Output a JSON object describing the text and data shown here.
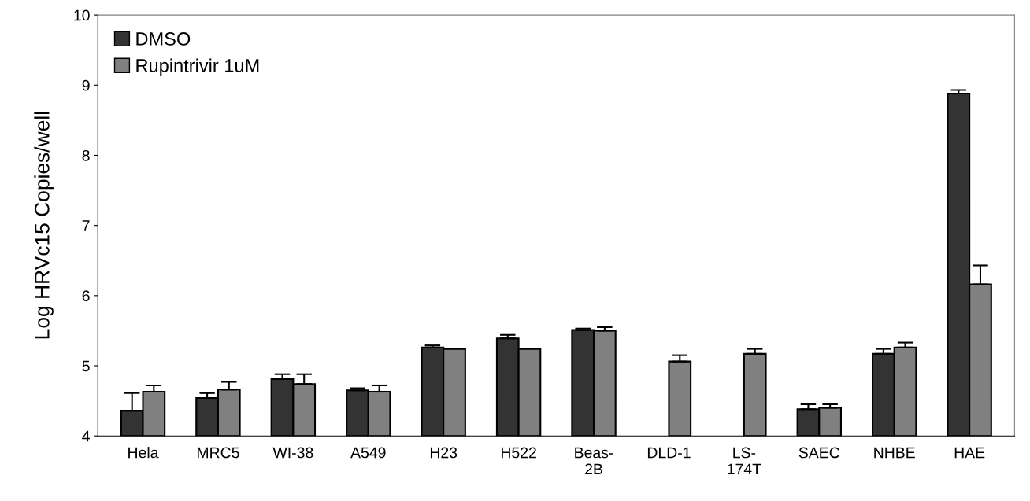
{
  "chart_data": {
    "type": "bar",
    "ylabel": "Log HRVc15 Copies/well",
    "categories": [
      "Hela",
      "MRC5",
      "WI-38",
      "A549",
      "H23",
      "H522",
      "Beas-\n2B",
      "DLD-1",
      "LS-\n174T",
      "SAEC",
      "NHBE",
      "HAE"
    ],
    "series": [
      {
        "name": "DMSO",
        "color": "#333333",
        "values": [
          4.36,
          4.54,
          4.81,
          4.65,
          5.26,
          5.39,
          5.51,
          null,
          null,
          4.38,
          5.17,
          8.88
        ],
        "errors": [
          [
            4.36,
            4.61
          ],
          [
            4.54,
            4.61
          ],
          [
            4.81,
            4.88
          ],
          [
            4.65,
            4.68
          ],
          [
            5.26,
            5.29
          ],
          [
            5.39,
            5.44
          ],
          [
            5.51,
            5.53
          ],
          null,
          null,
          [
            4.38,
            4.45
          ],
          [
            5.17,
            5.24
          ],
          [
            8.88,
            8.93
          ]
        ]
      },
      {
        "name": "Rupintrivir 1uM",
        "color": "#808080",
        "values": [
          4.63,
          4.66,
          4.74,
          4.63,
          5.24,
          5.24,
          5.5,
          5.06,
          5.17,
          4.4,
          5.26,
          6.16
        ],
        "errors": [
          [
            4.63,
            4.72
          ],
          [
            4.66,
            4.77
          ],
          [
            4.74,
            4.88
          ],
          [
            4.63,
            4.72
          ],
          null,
          null,
          [
            5.5,
            5.55
          ],
          [
            5.06,
            5.15
          ],
          [
            5.17,
            5.24
          ],
          [
            4.4,
            4.45
          ],
          [
            5.26,
            5.33
          ],
          [
            6.16,
            6.43
          ]
        ]
      }
    ],
    "ylim": [
      4,
      10
    ],
    "yticks": [
      4,
      5,
      6,
      7,
      8,
      9,
      10
    ],
    "grid": false,
    "legend": "top left"
  }
}
